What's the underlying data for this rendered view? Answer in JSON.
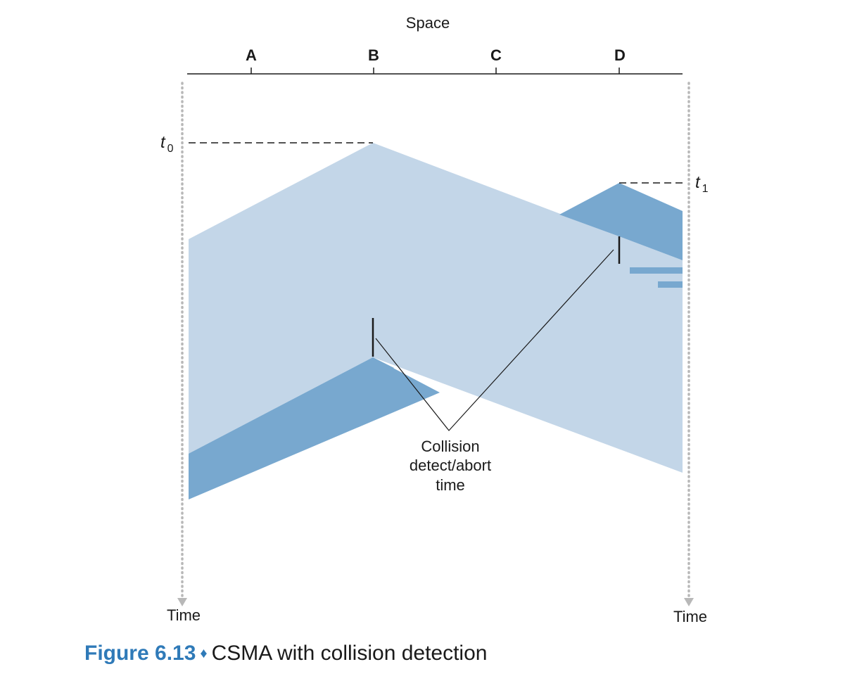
{
  "diagram": {
    "space_label": "Space",
    "nodes": [
      "A",
      "B",
      "C",
      "D"
    ],
    "t0": {
      "var": "t",
      "sub": "0"
    },
    "t1": {
      "var": "t",
      "sub": "1"
    },
    "time_left": "Time",
    "time_right": "Time",
    "collision_label": [
      "Collision",
      "detect/abort",
      "time"
    ],
    "colors": {
      "light_signal": "#c3d6e8",
      "dark_signal": "#78a8cf",
      "line": "#1a1a1a",
      "timeline_dots": "#b8b8b8",
      "caption_accent": "#2f7ab8"
    }
  },
  "caption": {
    "figure": "Figure 6.13",
    "separator": "♦",
    "text": "CSMA with collision detection"
  }
}
